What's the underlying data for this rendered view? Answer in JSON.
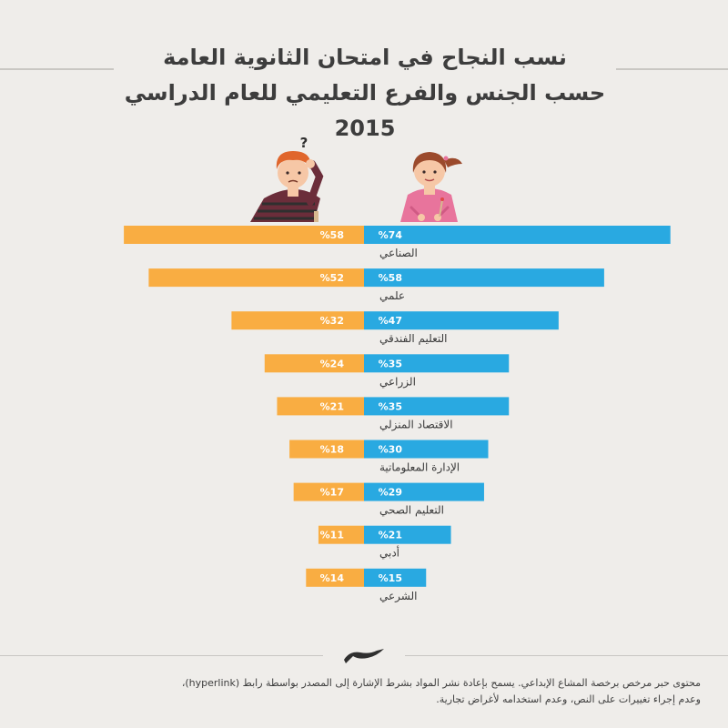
{
  "title": {
    "line1": "نسب النجاح في امتحان الثانوية العامة",
    "line2": "حسب الجنس والفرع التعليمي للعام الدراسي 2015"
  },
  "colors": {
    "male": "#f9ad42",
    "female": "#29a9e1",
    "background": "#efedea",
    "rule": "#c9c7c3",
    "male_shirt": "#6b2d3a",
    "male_hair": "#e0662c",
    "female_shirt": "#e8749c",
    "female_hair": "#9b4a2c",
    "skin": "#f6c7a6"
  },
  "icons": {
    "male": "confused-boy-student-icon",
    "female": "girl-student-writing-icon",
    "logo": "hibr-logo"
  },
  "chart_data": {
    "type": "bar",
    "orientation": "horizontal-diverging",
    "value_format": "%{v}",
    "categories": [
      "الصناعي",
      "علمي",
      "التعليم الفندقي",
      "الزراعي",
      "الاقتصاد المنزلي",
      "الإدارة المعلوماتية",
      "التعليم الصحي",
      "أدبي",
      "الشرعي"
    ],
    "series": [
      {
        "name": "",
        "group": "male",
        "side": "left",
        "color": "#f9ad42",
        "values": [
          58,
          52,
          32,
          24,
          21,
          18,
          17,
          11,
          14
        ]
      },
      {
        "name": "",
        "group": "female",
        "side": "right",
        "color": "#29a9e1",
        "values": [
          74,
          58,
          47,
          35,
          35,
          30,
          29,
          21,
          15
        ]
      }
    ],
    "xlim": [
      0,
      74
    ],
    "grid": false,
    "legend": "none"
  },
  "footer": {
    "line1": "محتوى حبر مرخص برخصة المشاع الإبداعي. يسمح بإعادة نشر المواد بشرط الإشارة إلى المصدر بواسطة رابط (hyperlink)،",
    "line2": "وعدم إجراء تغييرات على النص، وعدم استخدامه لأغراض تجارية."
  }
}
